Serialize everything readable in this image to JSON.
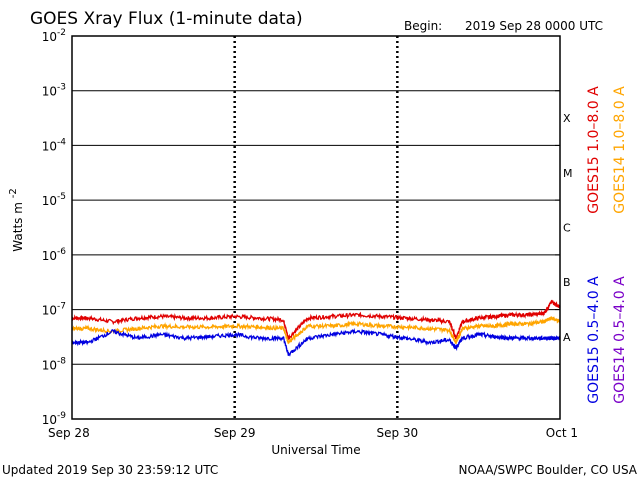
{
  "header": {
    "title": "GOES Xray Flux (1-minute data)",
    "begin_label": "Begin:",
    "begin_value": "2019 Sep 28 0000 UTC"
  },
  "footer": {
    "updated": "Updated 2019 Sep 30 23:59:12 UTC",
    "credit": "NOAA/SWPC Boulder, CO USA"
  },
  "chart_data": {
    "type": "line",
    "title": "GOES Xray Flux (1-minute data)",
    "xlabel": "Universal Time",
    "ylabel": "Watts m",
    "ylabel_sup": "-2",
    "yscale": "log",
    "ylim": [
      1e-09,
      0.01
    ],
    "y_ticks": [
      {
        "base": "10",
        "exp": "-2"
      },
      {
        "base": "10",
        "exp": "-3"
      },
      {
        "base": "10",
        "exp": "-4"
      },
      {
        "base": "10",
        "exp": "-5"
      },
      {
        "base": "10",
        "exp": "-6"
      },
      {
        "base": "10",
        "exp": "-7"
      },
      {
        "base": "10",
        "exp": "-8"
      },
      {
        "base": "10",
        "exp": "-9"
      }
    ],
    "x_ticks": [
      "Sep 28",
      "Sep 29",
      "Sep 30",
      "Oct 1"
    ],
    "xlim_days": [
      0,
      3
    ],
    "flare_classes": [
      "X",
      "M",
      "C",
      "B",
      "A"
    ],
    "grid": true,
    "legend_placement": "right, vertical",
    "series": [
      {
        "name": "GOES15 1.0–8.0 A",
        "color": "#e00000",
        "x": [
          0,
          0.1,
          0.25,
          0.4,
          0.55,
          0.7,
          0.85,
          1.0,
          1.15,
          1.3,
          1.33,
          1.45,
          1.6,
          1.75,
          1.9,
          2.05,
          2.2,
          2.32,
          2.36,
          2.4,
          2.5,
          2.6,
          2.7,
          2.8,
          2.9,
          2.95,
          3.0
        ],
        "y": [
          7e-08,
          7e-08,
          6e-08,
          7e-08,
          7.5e-08,
          7e-08,
          7e-08,
          7.5e-08,
          7e-08,
          6.5e-08,
          3e-08,
          7e-08,
          7.5e-08,
          8e-08,
          7.5e-08,
          7e-08,
          6.5e-08,
          6e-08,
          3e-08,
          6e-08,
          7e-08,
          7.5e-08,
          8e-08,
          8e-08,
          8.5e-08,
          1.4e-07,
          1.1e-07
        ]
      },
      {
        "name": "GOES14 1.0–8.0 A",
        "color": "#ffa500",
        "x": [
          0,
          0.1,
          0.25,
          0.4,
          0.55,
          0.7,
          0.85,
          1.0,
          1.15,
          1.3,
          1.33,
          1.45,
          1.6,
          1.75,
          1.9,
          2.05,
          2.2,
          2.32,
          2.36,
          2.4,
          2.5,
          2.6,
          2.7,
          2.8,
          2.9,
          2.95,
          3.0
        ],
        "y": [
          4.5e-08,
          4.5e-08,
          4e-08,
          4.5e-08,
          5e-08,
          4.8e-08,
          4.8e-08,
          5e-08,
          4.8e-08,
          4.5e-08,
          2.5e-08,
          5e-08,
          5e-08,
          5.5e-08,
          5e-08,
          4.8e-08,
          4.5e-08,
          4.2e-08,
          2.5e-08,
          4.5e-08,
          5e-08,
          5e-08,
          5.5e-08,
          5.5e-08,
          6e-08,
          7e-08,
          6e-08
        ]
      },
      {
        "name": "GOES15 0.5–4.0 A",
        "color": "#0000e0",
        "x": [
          0,
          0.1,
          0.25,
          0.4,
          0.55,
          0.7,
          0.85,
          1.0,
          1.15,
          1.3,
          1.33,
          1.45,
          1.6,
          1.75,
          1.9,
          2.05,
          2.2,
          2.32,
          2.36,
          2.4,
          2.5,
          2.6,
          2.7,
          2.8,
          2.9,
          2.95,
          3.0
        ],
        "y": [
          2.5e-08,
          2.5e-08,
          4e-08,
          3e-08,
          3.5e-08,
          3e-08,
          3.2e-08,
          3.5e-08,
          3e-08,
          3e-08,
          1.5e-08,
          3e-08,
          3.5e-08,
          4e-08,
          3.5e-08,
          3e-08,
          2.5e-08,
          2.8e-08,
          2e-08,
          3e-08,
          3.5e-08,
          3.2e-08,
          3e-08,
          3e-08,
          3e-08,
          3e-08,
          3e-08
        ]
      },
      {
        "name": "GOES14 0.5–4.0 A",
        "color": "#7a00c8",
        "x": [],
        "y": []
      }
    ]
  }
}
